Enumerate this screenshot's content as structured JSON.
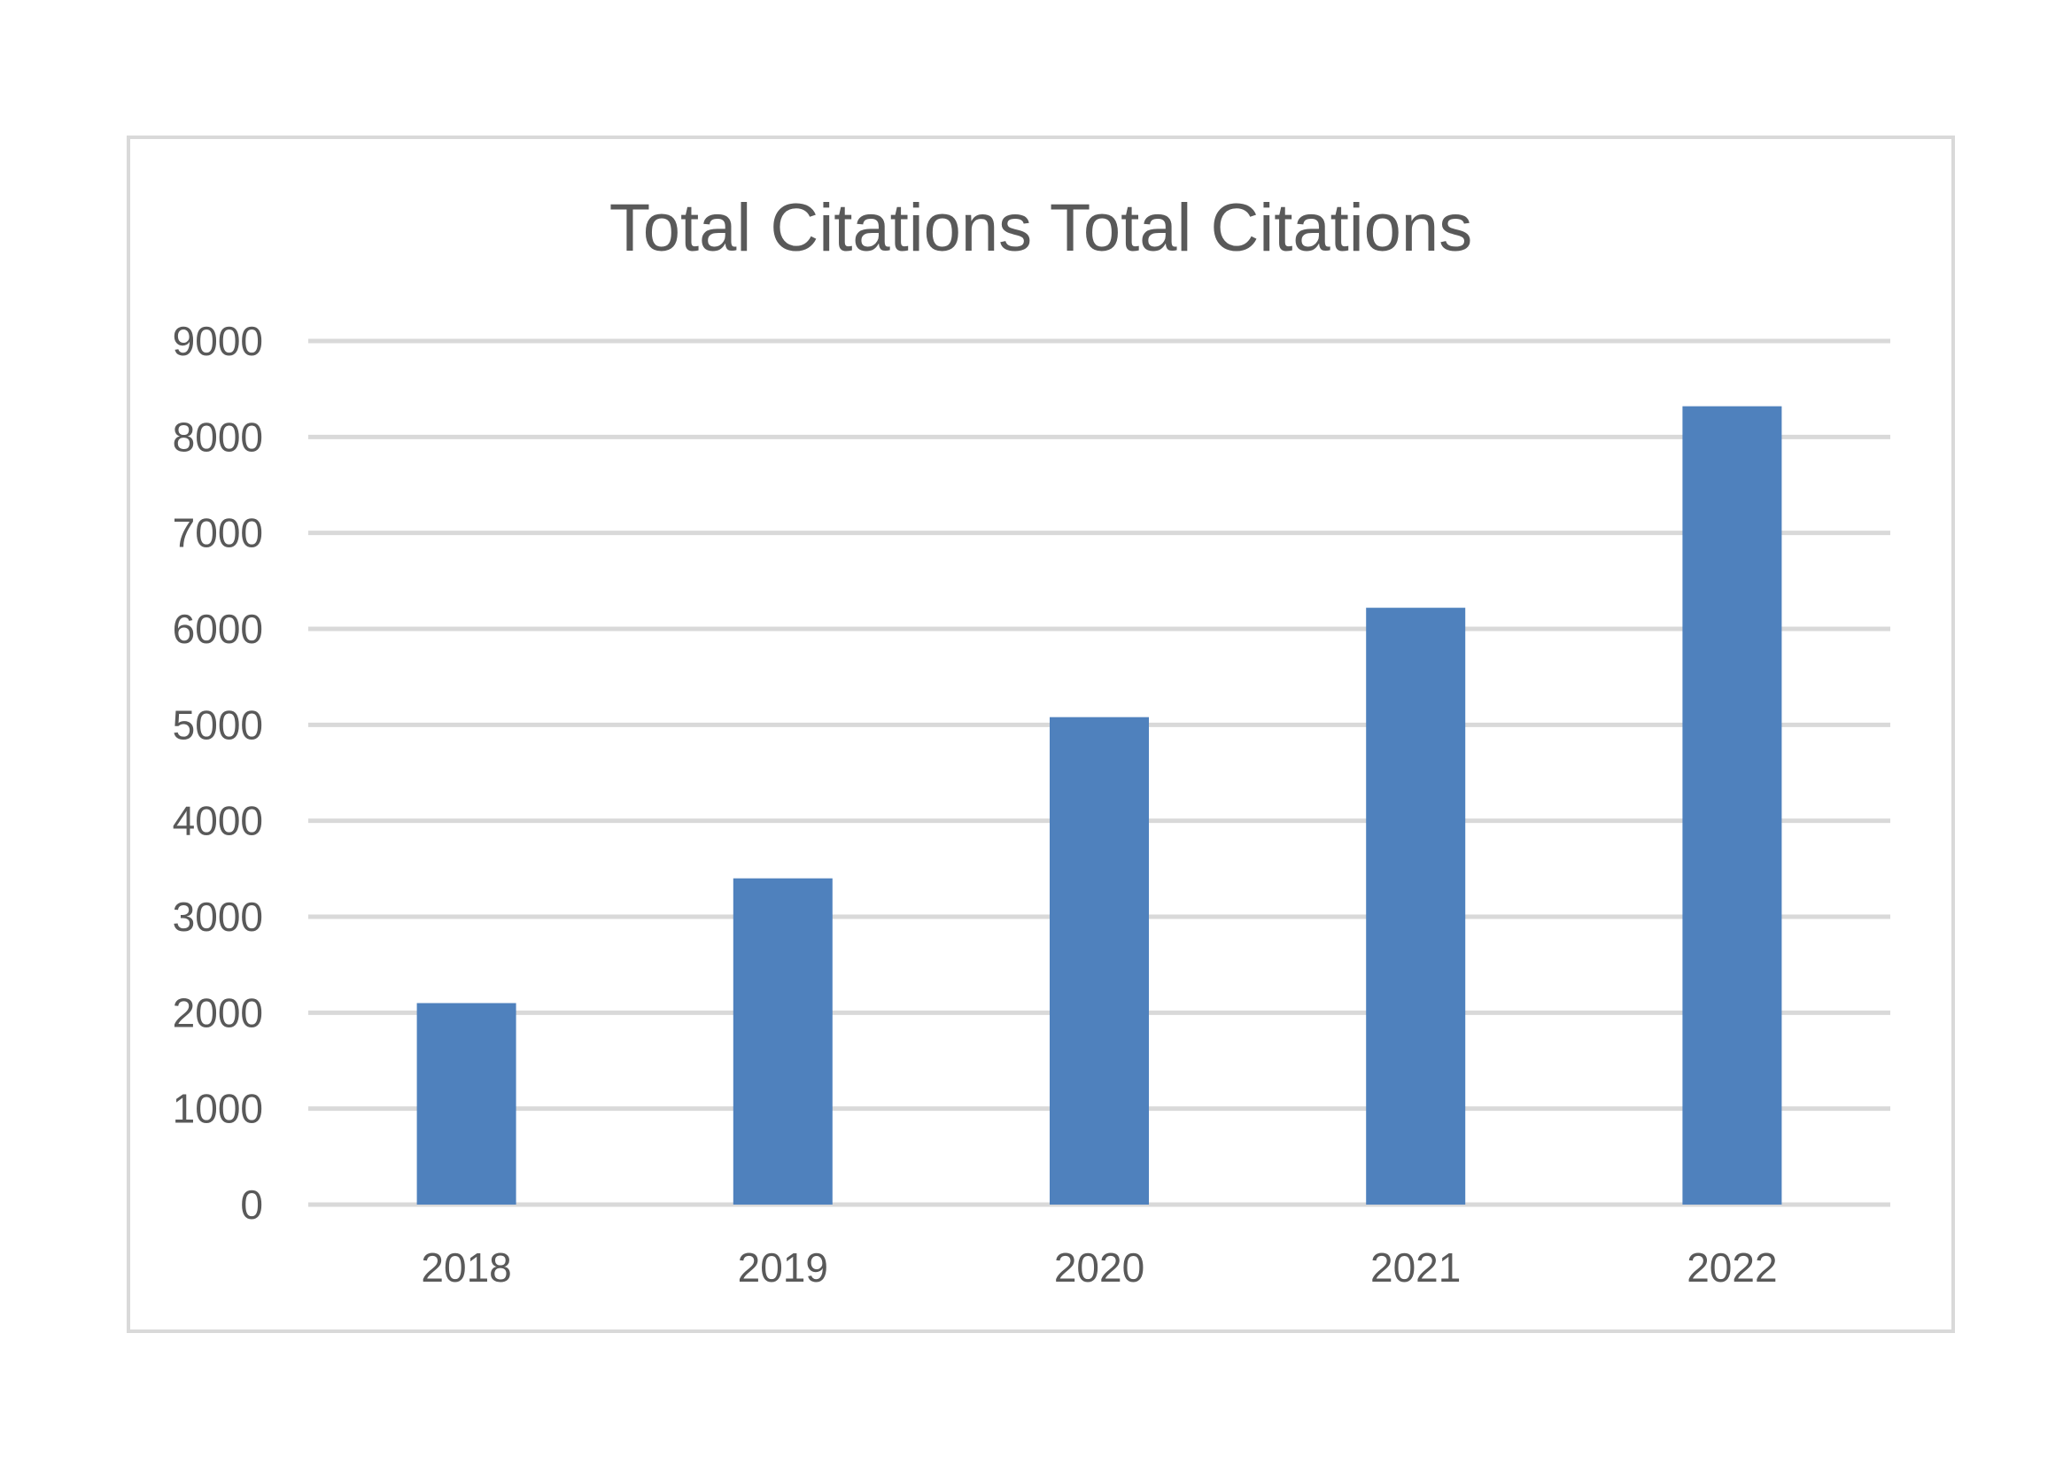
{
  "chart_data": {
    "type": "bar",
    "title": "Total Citations Total Citations",
    "categories": [
      "2018",
      "2019",
      "2020",
      "2021",
      "2022"
    ],
    "series": [
      {
        "values": [
          2100,
          3400,
          5080,
          6220,
          8320
        ],
        "color": "#4f81bd"
      }
    ],
    "ylim": [
      0,
      9000
    ],
    "yticks": [
      "0",
      "1000",
      "2000",
      "3000",
      "4000",
      "5000",
      "6000",
      "7000",
      "8000",
      "9000"
    ],
    "grid": true,
    "legend": "none",
    "xlabel": "",
    "ylabel": ""
  }
}
